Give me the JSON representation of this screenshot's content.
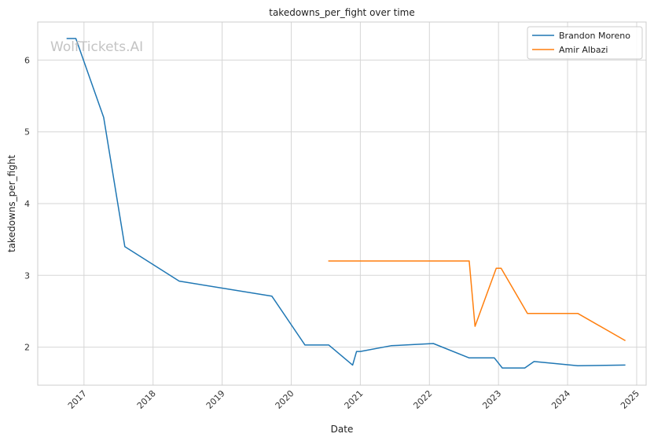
{
  "chart_data": {
    "type": "line",
    "title": "takedowns_per_fight over time",
    "xlabel": "Date",
    "ylabel": "takedowns_per_fight",
    "watermark": "WolfTickets.AI",
    "x_ticks": [
      "2017",
      "2018",
      "2019",
      "2020",
      "2021",
      "2022",
      "2023",
      "2024",
      "2025"
    ],
    "y_ticks": [
      2,
      3,
      4,
      5,
      6
    ],
    "xlim": [
      "2016-05-01",
      "2025-02-20"
    ],
    "ylim": [
      1.47,
      6.53
    ],
    "grid": true,
    "legend_position": "top-right",
    "series": [
      {
        "name": "Brandon Moreno",
        "color": "#1f77b4",
        "points": [
          [
            "2016-10-01",
            6.3
          ],
          [
            "2016-11-19",
            6.3
          ],
          [
            "2017-04-15",
            5.2
          ],
          [
            "2017-08-05",
            3.4
          ],
          [
            "2018-05-19",
            2.92
          ],
          [
            "2019-09-21",
            2.71
          ],
          [
            "2020-03-14",
            2.03
          ],
          [
            "2020-07-18",
            2.03
          ],
          [
            "2020-11-21",
            1.75
          ],
          [
            "2020-12-12",
            1.94
          ],
          [
            "2021-01-01",
            1.94
          ],
          [
            "2021-06-12",
            2.02
          ],
          [
            "2022-01-22",
            2.05
          ],
          [
            "2022-07-30",
            1.85
          ],
          [
            "2022-12-10",
            1.85
          ],
          [
            "2023-01-21",
            1.71
          ],
          [
            "2023-05-20",
            1.71
          ],
          [
            "2023-07-08",
            1.8
          ],
          [
            "2024-02-24",
            1.74
          ],
          [
            "2024-11-02",
            1.75
          ]
        ]
      },
      {
        "name": "Amir Albazi",
        "color": "#ff7f0e",
        "points": [
          [
            "2020-07-15",
            3.2
          ],
          [
            "2022-07-30",
            3.2
          ],
          [
            "2022-08-30",
            2.29
          ],
          [
            "2022-12-20",
            3.1
          ],
          [
            "2023-01-15",
            3.1
          ],
          [
            "2023-06-03",
            2.47
          ],
          [
            "2024-02-24",
            2.47
          ],
          [
            "2024-11-02",
            2.09
          ]
        ]
      }
    ]
  }
}
